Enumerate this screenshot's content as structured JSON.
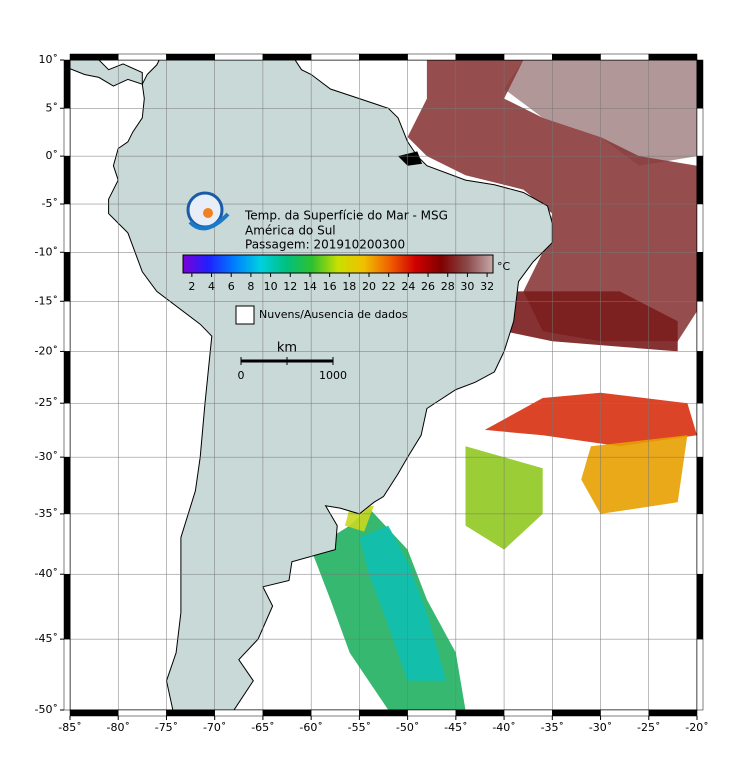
{
  "map": {
    "title_lines": [
      "Temp. da Superfície do Mar - MSG",
      "América do Sul",
      "Passagem: 201910200300"
    ],
    "xlim": [
      -85,
      -20
    ],
    "ylim": [
      -50,
      10
    ],
    "xticks": [
      {
        "value": -85,
        "label": "-85˚"
      },
      {
        "value": -80,
        "label": "-80˚"
      },
      {
        "value": -75,
        "label": "-75˚"
      },
      {
        "value": -70,
        "label": "-70˚"
      },
      {
        "value": -65,
        "label": "-65˚"
      },
      {
        "value": -60,
        "label": "-60˚"
      },
      {
        "value": -55,
        "label": "-55˚"
      },
      {
        "value": -50,
        "label": "-50˚"
      },
      {
        "value": -45,
        "label": "-45˚"
      },
      {
        "value": -40,
        "label": "-40˚"
      },
      {
        "value": -35,
        "label": "-35˚"
      },
      {
        "value": -30,
        "label": "-30˚"
      },
      {
        "value": -25,
        "label": "-25˚"
      },
      {
        "value": -20,
        "label": "-20˚"
      }
    ],
    "yticks": [
      {
        "value": 10,
        "label": "10˚"
      },
      {
        "value": 5,
        "label": "5˚"
      },
      {
        "value": 0,
        "label": "0˚"
      },
      {
        "value": -5,
        "label": "-5˚"
      },
      {
        "value": -10,
        "label": "-10˚"
      },
      {
        "value": -15,
        "label": "-15˚"
      },
      {
        "value": -20,
        "label": "-20˚"
      },
      {
        "value": -25,
        "label": "-25˚"
      },
      {
        "value": -30,
        "label": "-30˚"
      },
      {
        "value": -35,
        "label": "-35˚"
      },
      {
        "value": -40,
        "label": "-40˚"
      },
      {
        "value": -45,
        "label": "-45˚"
      },
      {
        "value": -50,
        "label": "-50˚"
      }
    ],
    "grid": true,
    "colorbar": {
      "range": [
        1.1,
        32.6
      ],
      "ticks": [
        2,
        4,
        6,
        8,
        10,
        12,
        14,
        16,
        18,
        20,
        22,
        24,
        26,
        28,
        30,
        32
      ],
      "unit": "°C",
      "colors": [
        "#7a00d8",
        "#2020ff",
        "#0080ff",
        "#00d0e0",
        "#00c080",
        "#30c030",
        "#c8e000",
        "#f0c000",
        "#f06000",
        "#d00000",
        "#800000",
        "#8a4a4a",
        "#c8a8a8"
      ]
    },
    "legend_label": "Nuvens/Ausencia de dados",
    "scale_bar": {
      "unit": "km",
      "start_label": "0",
      "end_label": "1000"
    }
  }
}
